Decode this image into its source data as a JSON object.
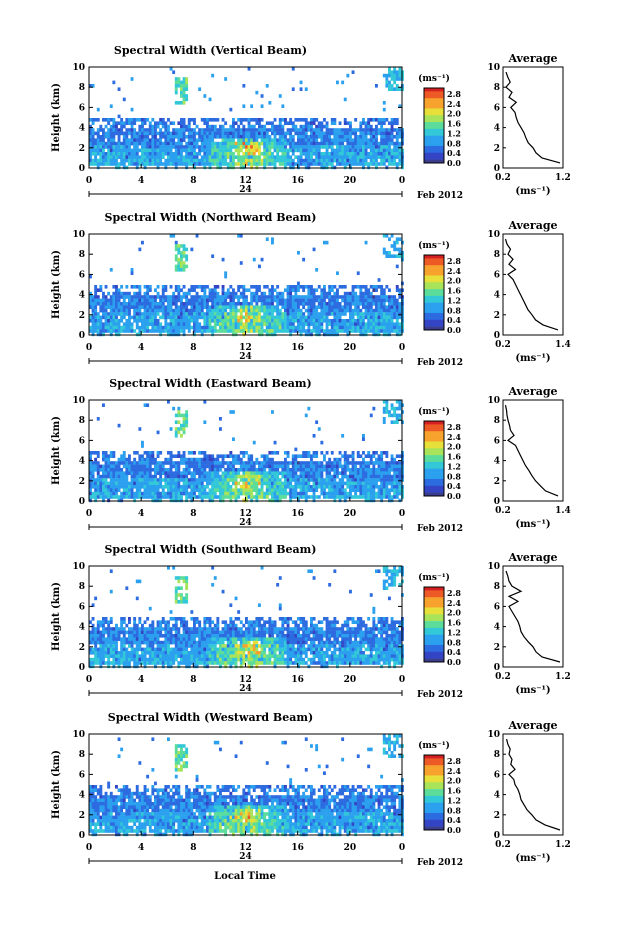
{
  "colorbar_unit": "(ms⁻¹)",
  "colorbar_ticks": [
    "2.8",
    "2.4",
    "2.0",
    "1.6",
    "1.2",
    "0.8",
    "0.4",
    "0.0"
  ],
  "colormap": [
    "#3a3d8c",
    "#3344c4",
    "#2d6be0",
    "#2aa0ee",
    "#32c8d8",
    "#5bdc9a",
    "#a8e35a",
    "#e8e03a",
    "#f7a22c",
    "#ee5a26",
    "#d42020"
  ],
  "date_label": "Feb 2012",
  "day_label": "24",
  "xlabel": "Local Time",
  "ylabel": "Height (km)",
  "avg_title": "Average",
  "avg_xlabel": "(ms⁻¹)",
  "x_ticks": [
    "0",
    "4",
    "8",
    "12",
    "16",
    "20",
    "0"
  ],
  "y_ticks": [
    "0",
    "2",
    "4",
    "6",
    "8",
    "10"
  ],
  "chart_data": [
    {
      "type": "heatmap",
      "title": "Spectral Width (Vertical Beam)",
      "xlim": [
        0,
        24
      ],
      "ylim": [
        0,
        10
      ],
      "clim": [
        0.0,
        2.8
      ],
      "average_profile": {
        "title": "Average",
        "xlim": [
          0.2,
          1.2
        ],
        "x_ticks": [
          "0.2",
          "1.2"
        ],
        "height_km": [
          0.5,
          1,
          1.5,
          2,
          2.5,
          3,
          3.5,
          4,
          4.5,
          5,
          5.5,
          6,
          6.5,
          7,
          7.5,
          8,
          8.5,
          9,
          9.5
        ],
        "width_ms": [
          1.15,
          0.85,
          0.75,
          0.7,
          0.62,
          0.58,
          0.55,
          0.5,
          0.45,
          0.42,
          0.4,
          0.33,
          0.42,
          0.3,
          0.35,
          0.25,
          0.32,
          0.28,
          0.25
        ]
      }
    },
    {
      "type": "heatmap",
      "title": "Spectral Width (Northward Beam)",
      "xlim": [
        0,
        24
      ],
      "ylim": [
        0,
        10
      ],
      "clim": [
        0.0,
        2.8
      ],
      "average_profile": {
        "title": "Average",
        "xlim": [
          0.2,
          1.4
        ],
        "x_ticks": [
          "0.2",
          "1.4"
        ],
        "height_km": [
          0.5,
          1,
          1.5,
          2,
          2.5,
          3,
          3.5,
          4,
          4.5,
          5,
          5.5,
          6,
          6.5,
          7,
          7.5,
          8,
          8.5,
          9,
          9.5
        ],
        "width_ms": [
          1.3,
          1.0,
          0.85,
          0.78,
          0.7,
          0.65,
          0.6,
          0.55,
          0.5,
          0.45,
          0.4,
          0.3,
          0.45,
          0.32,
          0.4,
          0.3,
          0.35,
          0.28,
          0.25
        ]
      }
    },
    {
      "type": "heatmap",
      "title": "Spectral Width (Eastward Beam)",
      "xlim": [
        0,
        24
      ],
      "ylim": [
        0,
        10
      ],
      "clim": [
        0.0,
        2.8
      ],
      "average_profile": {
        "title": "Average",
        "xlim": [
          0.2,
          1.4
        ],
        "x_ticks": [
          "0.2",
          "1.4"
        ],
        "height_km": [
          0.5,
          1,
          1.5,
          2,
          2.5,
          3,
          3.5,
          4,
          4.5,
          5,
          5.5,
          6,
          6.5,
          7,
          7.5,
          8,
          8.5,
          9,
          9.5
        ],
        "width_ms": [
          1.3,
          1.05,
          0.95,
          0.85,
          0.78,
          0.72,
          0.65,
          0.6,
          0.55,
          0.5,
          0.45,
          0.3,
          0.42,
          0.35,
          0.33,
          0.3,
          0.28,
          0.27,
          0.25
        ]
      }
    },
    {
      "type": "heatmap",
      "title": "Spectral Width (Southward Beam)",
      "xlim": [
        0,
        24
      ],
      "ylim": [
        0,
        10
      ],
      "clim": [
        0.0,
        2.8
      ],
      "average_profile": {
        "title": "Average",
        "xlim": [
          0.2,
          1.2
        ],
        "x_ticks": [
          "0.2",
          "1.2"
        ],
        "height_km": [
          0.5,
          1,
          1.5,
          2,
          2.5,
          3,
          3.5,
          4,
          4.5,
          5,
          5.5,
          6,
          6.5,
          7,
          7.5,
          8,
          8.5,
          9,
          9.5
        ],
        "width_ms": [
          1.15,
          0.85,
          0.75,
          0.7,
          0.62,
          0.55,
          0.5,
          0.48,
          0.45,
          0.4,
          0.35,
          0.3,
          0.45,
          0.3,
          0.5,
          0.35,
          0.3,
          0.28,
          0.25
        ]
      }
    },
    {
      "type": "heatmap",
      "title": "Spectral Width (Westward Beam)",
      "xlim": [
        0,
        24
      ],
      "ylim": [
        0,
        10
      ],
      "clim": [
        0.0,
        2.8
      ],
      "average_profile": {
        "title": "Average",
        "xlim": [
          0.2,
          1.2
        ],
        "x_ticks": [
          "0.2",
          "1.2"
        ],
        "height_km": [
          0.5,
          1,
          1.5,
          2,
          2.5,
          3,
          3.5,
          4,
          4.5,
          5,
          5.5,
          6,
          6.5,
          7,
          7.5,
          8,
          8.5,
          9,
          9.5
        ],
        "width_ms": [
          1.15,
          0.9,
          0.75,
          0.68,
          0.6,
          0.55,
          0.5,
          0.48,
          0.45,
          0.4,
          0.38,
          0.3,
          0.4,
          0.33,
          0.35,
          0.3,
          0.32,
          0.28,
          0.26
        ]
      }
    }
  ]
}
